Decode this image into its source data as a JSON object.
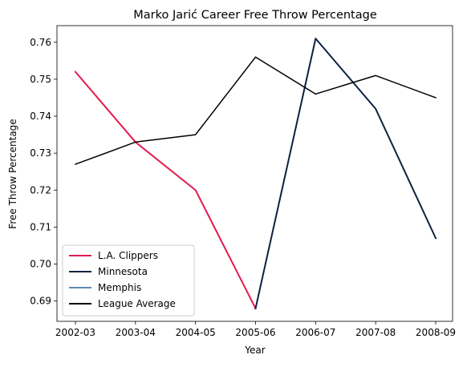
{
  "chart_data": {
    "type": "line",
    "title": "Marko Jarić Career Free Throw Percentage",
    "xlabel": "Year",
    "ylabel": "Free Throw Percentage",
    "categories": [
      "2002-03",
      "2003-04",
      "2004-05",
      "2005-06",
      "2006-07",
      "2007-08",
      "2008-09"
    ],
    "ylim": [
      0.6845,
      0.7645
    ],
    "yticks": [
      "0.69",
      "0.70",
      "0.71",
      "0.72",
      "0.73",
      "0.74",
      "0.75",
      "0.76"
    ],
    "grid": false,
    "legend_position": "lower-left",
    "series": [
      {
        "name": "L.A. Clippers",
        "color": "#E31B4F",
        "values": [
          0.752,
          0.733,
          0.72,
          0.688,
          null,
          null,
          null
        ]
      },
      {
        "name": "Minnesota",
        "color": "#0C2340",
        "values": [
          null,
          null,
          null,
          0.688,
          0.761,
          0.742,
          0.707
        ]
      },
      {
        "name": "Memphis",
        "color": "#5D88B0",
        "values": [
          null,
          null,
          null,
          null,
          null,
          null,
          null
        ]
      },
      {
        "name": "League Average",
        "color": "#000000",
        "values": [
          0.727,
          0.733,
          0.735,
          0.756,
          0.746,
          0.751,
          0.745
        ]
      }
    ]
  }
}
